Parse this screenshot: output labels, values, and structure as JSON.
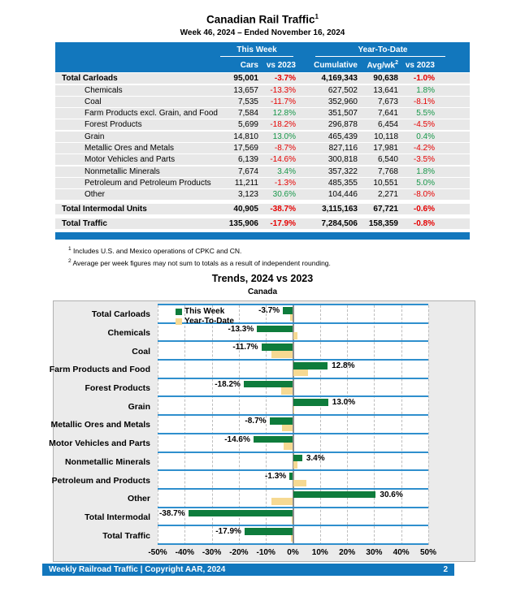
{
  "page": {
    "title": "Canadian Rail Traffic",
    "title_superscript": "1",
    "subtitle": "Week 46, 2024 – Ended November 16, 2024"
  },
  "table": {
    "group_headers": {
      "this_week": "This Week",
      "year_to_date": "Year-To-Date"
    },
    "columns": [
      "Cars",
      "vs 2023",
      "Cumulative",
      "Avg/wk",
      "vs 2023"
    ],
    "avg_wk_superscript": "2",
    "rows": [
      {
        "label": "Total Carloads",
        "bold": true,
        "gap_before": false,
        "cars": "95,001",
        "cars_vs": "-3.7%",
        "cumulative": "4,169,343",
        "avg_wk": "90,638",
        "ytd_vs": "-1.0%"
      },
      {
        "label": "Chemicals",
        "bold": false,
        "gap_before": false,
        "cars": "13,657",
        "cars_vs": "-13.3%",
        "cumulative": "627,502",
        "avg_wk": "13,641",
        "ytd_vs": "1.8%"
      },
      {
        "label": "Coal",
        "bold": false,
        "gap_before": false,
        "cars": "7,535",
        "cars_vs": "-11.7%",
        "cumulative": "352,960",
        "avg_wk": "7,673",
        "ytd_vs": "-8.1%"
      },
      {
        "label": "Farm Products excl. Grain, and Food",
        "bold": false,
        "gap_before": false,
        "cars": "7,584",
        "cars_vs": "12.8%",
        "cumulative": "351,507",
        "avg_wk": "7,641",
        "ytd_vs": "5.5%"
      },
      {
        "label": "Forest Products",
        "bold": false,
        "gap_before": false,
        "cars": "5,699",
        "cars_vs": "-18.2%",
        "cumulative": "296,878",
        "avg_wk": "6,454",
        "ytd_vs": "-4.5%"
      },
      {
        "label": "Grain",
        "bold": false,
        "gap_before": false,
        "cars": "14,810",
        "cars_vs": "13.0%",
        "cumulative": "465,439",
        "avg_wk": "10,118",
        "ytd_vs": "0.4%"
      },
      {
        "label": "Metallic Ores and Metals",
        "bold": false,
        "gap_before": false,
        "cars": "17,569",
        "cars_vs": "-8.7%",
        "cumulative": "827,116",
        "avg_wk": "17,981",
        "ytd_vs": "-4.2%"
      },
      {
        "label": "Motor Vehicles and Parts",
        "bold": false,
        "gap_before": false,
        "cars": "6,139",
        "cars_vs": "-14.6%",
        "cumulative": "300,818",
        "avg_wk": "6,540",
        "ytd_vs": "-3.5%"
      },
      {
        "label": "Nonmetallic Minerals",
        "bold": false,
        "gap_before": false,
        "cars": "7,674",
        "cars_vs": "3.4%",
        "cumulative": "357,322",
        "avg_wk": "7,768",
        "ytd_vs": "1.8%"
      },
      {
        "label": "Petroleum and Petroleum Products",
        "bold": false,
        "gap_before": false,
        "cars": "11,211",
        "cars_vs": "-1.3%",
        "cumulative": "485,355",
        "avg_wk": "10,551",
        "ytd_vs": "5.0%"
      },
      {
        "label": "Other",
        "bold": false,
        "gap_before": false,
        "cars": "3,123",
        "cars_vs": "30.6%",
        "cumulative": "104,446",
        "avg_wk": "2,271",
        "ytd_vs": "-8.0%"
      },
      {
        "label": "Total Intermodal Units",
        "bold": true,
        "gap_before": true,
        "cars": "40,905",
        "cars_vs": "-38.7%",
        "cumulative": "3,115,163",
        "avg_wk": "67,721",
        "ytd_vs": "-0.6%"
      },
      {
        "label": "Total Traffic",
        "bold": true,
        "gap_before": true,
        "cars": "135,906",
        "cars_vs": "-17.9%",
        "cumulative": "7,284,506",
        "avg_wk": "158,359",
        "ytd_vs": "-0.8%"
      }
    ]
  },
  "footnotes": [
    {
      "sup": "1",
      "text": "Includes U.S. and Mexico operations of CPKC and CN."
    },
    {
      "sup": "2",
      "text": "Average per week figures may not sum to totals as a result of independent rounding."
    }
  ],
  "chart_data": {
    "type": "bar",
    "orientation": "horizontal",
    "title": "Trends, 2024 vs 2023",
    "subtitle": "Canada",
    "categories": [
      "Total Carloads",
      "Chemicals",
      "Coal",
      "Farm Products and Food",
      "Forest Products",
      "Grain",
      "Metallic Ores and Metals",
      "Motor Vehicles and Parts",
      "Nonmetallic Minerals",
      "Petroleum and Products",
      "Other",
      "Total Intermodal",
      "Total Traffic"
    ],
    "series": [
      {
        "name": "This Week",
        "color": "#0e7c3c",
        "values": [
          -3.7,
          -13.3,
          -11.7,
          12.8,
          -18.2,
          13.0,
          -8.7,
          -14.6,
          3.4,
          -1.3,
          30.6,
          -38.7,
          -17.9
        ]
      },
      {
        "name": "Year-To-Date",
        "color": "#f6d992",
        "values": [
          -1.0,
          1.8,
          -8.1,
          5.5,
          -4.5,
          0.4,
          -4.2,
          -3.5,
          1.8,
          5.0,
          -8.0,
          -0.6,
          -0.8
        ]
      }
    ],
    "bar_labels_on": "This Week",
    "xlim": [
      -50,
      50
    ],
    "xticks": [
      "-50%",
      "-40%",
      "-30%",
      "-20%",
      "-10%",
      "0%",
      "10%",
      "20%",
      "30%",
      "40%",
      "50%"
    ],
    "grid": "dashed vertical every 10%",
    "legend_position": "top-left inside plot"
  },
  "footer": {
    "left": "Weekly Railroad Traffic | Copyright AAR, 2024",
    "page_number": "2"
  },
  "colors": {
    "header_blue": "#1277bd",
    "band_separator_blue": "#2f8fcd",
    "bar_green": "#0e7c3c",
    "bar_tan": "#f6d992",
    "negative_red": "#e60000",
    "positive_green": "#18984a",
    "row_gray": "#e8e8e8"
  }
}
